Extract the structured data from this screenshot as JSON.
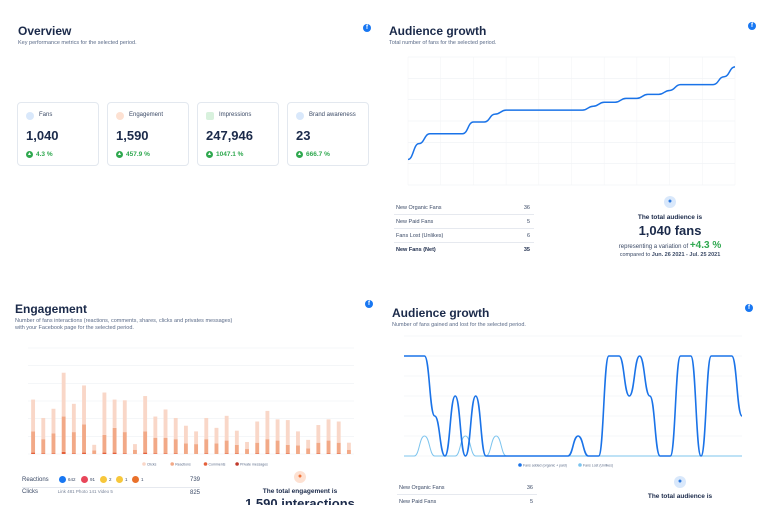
{
  "overview": {
    "title": "Overview",
    "subtitle": "Key performance metrics for the selected period.",
    "cards": [
      {
        "label": "Fans",
        "value": "1,040",
        "trend": "4.3 %",
        "color": "#2f7be0"
      },
      {
        "label": "Engagement",
        "value": "1,590",
        "trend": "457.9 %",
        "color": "#f0743a"
      },
      {
        "label": "Impressions",
        "value": "247,946",
        "trend": "1047.1 %",
        "color": "#3cab55"
      },
      {
        "label": "Brand awareness",
        "value": "23",
        "trend": "666.7 %",
        "color": "#2f7be0"
      }
    ]
  },
  "audience_growth_1": {
    "title": "Audience growth",
    "subtitle": "Total number of fans for the selected period.",
    "stats": [
      {
        "label": "New Organic Fans",
        "value": "36"
      },
      {
        "label": "New Paid Fans",
        "value": "5"
      },
      {
        "label": "Fans Lost (Unlikes)",
        "value": "6"
      },
      {
        "label": "New Fans (Net)",
        "value": "35"
      }
    ],
    "summary_heading": "The total audience is",
    "summary_value": "1,040 fans",
    "variation_prefix": "representing a variation of",
    "variation_value": "+4.3 %",
    "compare_prefix": "compared to",
    "compare_range": "Jun. 26 2021 - Jul. 25 2021"
  },
  "engagement": {
    "title": "Engagement",
    "subtitle_line1": "Number of fans interactions (reactions, comments, shares, clicks and privates messages)",
    "subtitle_line2": "with your Facebook page for the selected period.",
    "legend": [
      "Clicks",
      "Reactions",
      "Comments",
      "Private messages"
    ],
    "reactions_label": "Reactions",
    "reactions_counts": [
      "642",
      "91",
      "2",
      "1",
      "1"
    ],
    "reactions_total": "739",
    "clicks_label": "Clicks",
    "clicks_breakdown": "Link 481   Photo 141   Video 5",
    "clicks_total": "825",
    "summary_heading": "The total engagement is",
    "summary_value": "1,590 interactions"
  },
  "audience_growth_2": {
    "title": "Audience growth",
    "subtitle": "Number of fans gained and lost for the selected period.",
    "legend": [
      "Fans added (organic + paid)",
      "Fans Lost (Unlikes)"
    ],
    "stats": [
      {
        "label": "New Organic Fans",
        "value": "36"
      },
      {
        "label": "New Paid Fans",
        "value": "5"
      }
    ],
    "summary_heading": "The total audience is"
  },
  "colors": {
    "facebook": "#1877f2",
    "line": "#1a73e8",
    "light_line": "#7cc4ee",
    "positive": "#2fa84f",
    "clicks": "#f9d7c8",
    "reactions": "#f2a987",
    "comments": "#e4603b"
  },
  "chart_data": [
    {
      "type": "line",
      "title": "Audience growth",
      "series": [
        {
          "values": [
            993,
            1001,
            1006,
            1006,
            1006,
            1006,
            1012,
            1012,
            1016,
            1018,
            1018,
            1018,
            1018,
            1018,
            1018,
            1018,
            1018,
            1020,
            1022,
            1022,
            1024,
            1024,
            1026,
            1026,
            1028,
            1031,
            1031,
            1031,
            1031,
            1035,
            1040
          ]
        }
      ],
      "ylim": [
        980,
        1045
      ]
    },
    {
      "type": "bar",
      "title": "Engagement",
      "ylim": [
        0,
        150
      ],
      "series": [
        {
          "name": "Clicks",
          "values": [
            45,
            30,
            35,
            62,
            40,
            55,
            8,
            60,
            40,
            45,
            8,
            50,
            30,
            40,
            30,
            25,
            18,
            30,
            22,
            35,
            20,
            10,
            30,
            40,
            30,
            35,
            20,
            12,
            25,
            30,
            30,
            10
          ]
        },
        {
          "name": "Reactions",
          "values": [
            30,
            20,
            28,
            50,
            30,
            40,
            5,
            25,
            35,
            30,
            6,
            30,
            22,
            22,
            20,
            15,
            14,
            20,
            15,
            18,
            12,
            7,
            15,
            20,
            18,
            12,
            12,
            8,
            15,
            18,
            15,
            6
          ]
        },
        {
          "name": "Comments",
          "values": [
            2,
            1,
            1,
            3,
            1,
            2,
            0,
            2,
            2,
            1,
            0,
            2,
            1,
            1,
            1,
            0,
            0,
            1,
            0,
            1,
            1,
            0,
            1,
            1,
            1,
            1,
            0,
            0,
            1,
            1,
            1,
            0
          ]
        },
        {
          "name": "Private messages",
          "values": [
            0,
            0,
            0,
            0,
            0,
            0,
            0,
            0,
            0,
            0,
            0,
            0,
            0,
            0,
            0,
            0,
            0,
            0,
            0,
            0,
            0,
            0,
            0,
            0,
            0,
            0,
            0,
            0,
            0,
            0,
            0,
            0
          ]
        }
      ]
    },
    {
      "type": "line",
      "title": "Audience growth",
      "ylim": [
        0,
        6
      ],
      "series": [
        {
          "name": "Fans added (organic + paid)",
          "values": [
            5,
            5,
            5,
            2,
            0,
            3,
            0,
            3,
            0,
            0,
            0,
            0,
            0,
            0,
            0,
            0,
            0,
            1,
            0,
            0,
            5,
            5,
            3,
            5,
            3,
            0,
            0,
            5,
            5,
            0,
            5,
            5,
            5,
            2
          ]
        },
        {
          "name": "Fans Lost (Unlikes)",
          "values": [
            0,
            0,
            1,
            0,
            0,
            0,
            1,
            0,
            0,
            1,
            0,
            0,
            0,
            0,
            0,
            0,
            0,
            0,
            0,
            0,
            0,
            0,
            0,
            0,
            0,
            0,
            0,
            0,
            0,
            0,
            0,
            0,
            0,
            0
          ]
        }
      ]
    }
  ]
}
